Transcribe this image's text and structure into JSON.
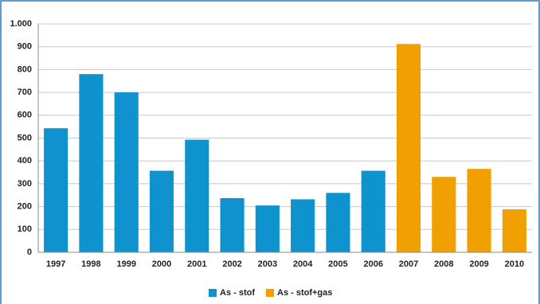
{
  "chart_data": {
    "type": "bar",
    "categories": [
      "1997",
      "1998",
      "1999",
      "2000",
      "2001",
      "2002",
      "2003",
      "2004",
      "2005",
      "2006",
      "2007",
      "2008",
      "2009",
      "2010"
    ],
    "series": [
      {
        "name": "As - stof",
        "color": "#0e93cf",
        "values": [
          543,
          780,
          700,
          357,
          493,
          237,
          205,
          232,
          260,
          357,
          null,
          null,
          null,
          null
        ]
      },
      {
        "name": "As - stof+gas",
        "color": "#f0a000",
        "values": [
          null,
          null,
          null,
          null,
          null,
          null,
          null,
          null,
          null,
          null,
          912,
          330,
          365,
          188
        ]
      }
    ],
    "ylim": [
      0,
      1000
    ],
    "yticks": [
      0,
      100,
      200,
      300,
      400,
      500,
      600,
      700,
      800,
      900,
      {
        "value": 1000,
        "label": "1.000"
      }
    ],
    "grid": true,
    "legend": "bottom"
  }
}
